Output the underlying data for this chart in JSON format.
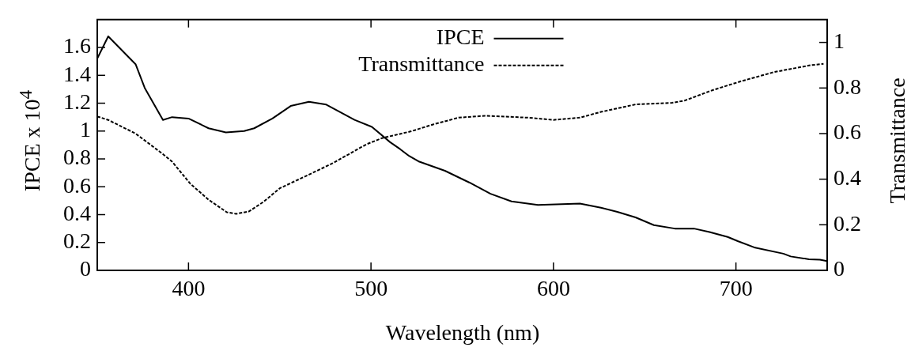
{
  "chart_data": {
    "type": "line",
    "xlabel": "Wavelength (nm)",
    "ylabel": "IPCE x 10$^{4}$",
    "y2label": "Transmittance",
    "xlim": [
      350,
      750
    ],
    "xticks": [
      400,
      500,
      600,
      700
    ],
    "ylim": [
      0,
      1.8
    ],
    "yticks": [
      0,
      0.2,
      0.4,
      0.6,
      0.8,
      1,
      1.2,
      1.4,
      1.6
    ],
    "y2lim": [
      0,
      1.1
    ],
    "y2ticks": [
      0,
      0.2,
      0.4,
      0.6,
      0.8,
      1
    ],
    "grid": false,
    "legend": "top",
    "marker": "none",
    "series": [
      {
        "name": "IPCE",
        "color": "#000000",
        "line_style": "solid",
        "x": [
          350,
          356,
          371,
          376,
          386,
          391,
          400,
          411,
          420.5,
          430.5,
          436,
          446,
          456,
          466,
          475.5,
          491,
          500.5,
          510.5,
          516,
          521,
          526.5,
          540.5,
          554,
          565.5,
          577,
          591.5,
          614.5,
          626,
          635,
          645,
          655,
          666.5,
          677,
          685.5,
          695.5,
          701,
          710,
          726,
          730,
          740,
          746,
          750
        ],
        "values": [
          1.52,
          1.68,
          1.48,
          1.31,
          1.08,
          1.1,
          1.09,
          1.02,
          0.99,
          1,
          1.02,
          1.09,
          1.18,
          1.21,
          1.19,
          1.08,
          1.03,
          0.92,
          0.87,
          0.82,
          0.78,
          0.715,
          0.63,
          0.55,
          0.495,
          0.47,
          0.48,
          0.45,
          0.42,
          0.38,
          0.325,
          0.3,
          0.3,
          0.275,
          0.24,
          0.21,
          0.165,
          0.12,
          0.1,
          0.08,
          0.077,
          0.066
        ]
      },
      {
        "name": "Transmittance",
        "color": "#000000",
        "line_style": "dashed",
        "axis": "y2",
        "x": [
          350,
          356,
          371,
          386,
          391,
          401,
          411,
          421,
          426,
          433,
          441,
          450,
          466,
          479,
          497.5,
          506,
          522,
          534,
          548,
          562.5,
          586,
          600,
          614.5,
          626,
          645,
          665,
          672,
          687,
          703,
          721,
          741,
          748
        ],
        "values": [
          0.675,
          0.66,
          0.6,
          0.51,
          0.477,
          0.38,
          0.31,
          0.255,
          0.248,
          0.258,
          0.3,
          0.36,
          0.42,
          0.47,
          0.553,
          0.58,
          0.61,
          0.64,
          0.67,
          0.678,
          0.67,
          0.66,
          0.67,
          0.695,
          0.728,
          0.735,
          0.745,
          0.79,
          0.83,
          0.87,
          0.9,
          0.906
        ]
      }
    ]
  }
}
